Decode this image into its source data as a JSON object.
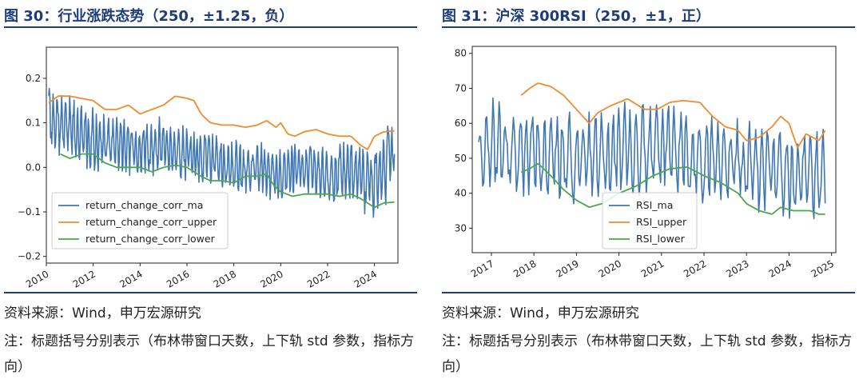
{
  "chart_data": [
    {
      "type": "line",
      "title": "图 30：行业涨跌态势（250，±1.25，负）",
      "xlabel": "",
      "ylabel": "",
      "x_ticks": [
        "2010",
        "2012",
        "2014",
        "2016",
        "2018",
        "2020",
        "2022",
        "2024"
      ],
      "x_range": [
        2010.0,
        2025.0
      ],
      "ylim": [
        -0.215,
        0.27
      ],
      "y_ticks": [
        0.2,
        0.1,
        0.0,
        -0.1,
        -0.2
      ],
      "y_tick_labels": [
        "0.2",
        "0.1",
        "0.0",
        "−0.1",
        "−0.2"
      ],
      "legend_position": "lower-left",
      "series": [
        {
          "name": "return_change_corr_ma",
          "color": "#3f77b4",
          "kind": "oscillating",
          "x_start": 2010.1,
          "x_end": 2024.85,
          "points": 560,
          "seed": 7,
          "base": [
            [
              2010.1,
              0.1
            ],
            [
              2011,
              0.09
            ],
            [
              2012,
              0.06
            ],
            [
              2013,
              0.05
            ],
            [
              2014,
              0.04
            ],
            [
              2015,
              0.05
            ],
            [
              2016,
              0.03
            ],
            [
              2017,
              0.02
            ],
            [
              2018,
              0.0
            ],
            [
              2019,
              0.0
            ],
            [
              2020,
              -0.02
            ],
            [
              2021,
              0.0
            ],
            [
              2022,
              -0.02
            ],
            [
              2023,
              -0.01
            ],
            [
              2024,
              -0.03
            ],
            [
              2024.85,
              0.05
            ]
          ],
          "amp": [
            [
              2010.1,
              0.08
            ],
            [
              2012,
              0.07
            ],
            [
              2016,
              0.06
            ],
            [
              2019,
              0.06
            ],
            [
              2022,
              0.06
            ],
            [
              2024.85,
              0.1
            ]
          ]
        },
        {
          "name": "return_change_corr_upper",
          "color": "#f08c2e",
          "kind": "smooth",
          "points": [
            [
              2010.1,
              0.145
            ],
            [
              2010.5,
              0.16
            ],
            [
              2011,
              0.16
            ],
            [
              2011.5,
              0.155
            ],
            [
              2012,
              0.15
            ],
            [
              2012.5,
              0.13
            ],
            [
              2013,
              0.13
            ],
            [
              2013.5,
              0.14
            ],
            [
              2014,
              0.12
            ],
            [
              2014.5,
              0.13
            ],
            [
              2015,
              0.14
            ],
            [
              2015.5,
              0.16
            ],
            [
              2016,
              0.155
            ],
            [
              2016.3,
              0.15
            ],
            [
              2016.6,
              0.12
            ],
            [
              2017,
              0.1
            ],
            [
              2017.5,
              0.095
            ],
            [
              2018,
              0.095
            ],
            [
              2018.5,
              0.09
            ],
            [
              2019,
              0.095
            ],
            [
              2019.4,
              0.105
            ],
            [
              2019.8,
              0.09
            ],
            [
              2020,
              0.1
            ],
            [
              2020.3,
              0.075
            ],
            [
              2020.6,
              0.07
            ],
            [
              2021,
              0.08
            ],
            [
              2021.5,
              0.085
            ],
            [
              2022,
              0.075
            ],
            [
              2022.5,
              0.07
            ],
            [
              2023,
              0.07
            ],
            [
              2023.4,
              0.05
            ],
            [
              2023.7,
              0.04
            ],
            [
              2024,
              0.07
            ],
            [
              2024.4,
              0.08
            ],
            [
              2024.85,
              0.082
            ]
          ]
        },
        {
          "name": "return_change_corr_lower",
          "color": "#4ca64c",
          "kind": "smooth",
          "points": [
            [
              2010.6,
              0.03
            ],
            [
              2011,
              0.02
            ],
            [
              2011.5,
              0.03
            ],
            [
              2012,
              0.03
            ],
            [
              2012.5,
              0.01
            ],
            [
              2013,
              0.0
            ],
            [
              2013.5,
              0.0
            ],
            [
              2014,
              0.0
            ],
            [
              2014.5,
              -0.01
            ],
            [
              2015,
              0.0
            ],
            [
              2015.5,
              0.005
            ],
            [
              2016,
              0.0
            ],
            [
              2016.3,
              -0.01
            ],
            [
              2016.6,
              -0.02
            ],
            [
              2017,
              -0.03
            ],
            [
              2017.5,
              -0.03
            ],
            [
              2018,
              -0.035
            ],
            [
              2018.5,
              -0.02
            ],
            [
              2019,
              -0.02
            ],
            [
              2019.4,
              -0.015
            ],
            [
              2019.7,
              -0.04
            ],
            [
              2020,
              -0.055
            ],
            [
              2020.5,
              -0.065
            ],
            [
              2021,
              -0.06
            ],
            [
              2021.5,
              -0.06
            ],
            [
              2022,
              -0.06
            ],
            [
              2022.5,
              -0.065
            ],
            [
              2023,
              -0.06
            ],
            [
              2023.4,
              -0.07
            ],
            [
              2023.7,
              -0.08
            ],
            [
              2024,
              -0.09
            ],
            [
              2024.4,
              -0.08
            ],
            [
              2024.85,
              -0.078
            ]
          ]
        }
      ]
    },
    {
      "type": "line",
      "title": "图 31：沪深 300RSI（250，±1，正）",
      "xlabel": "",
      "ylabel": "",
      "x_ticks": [
        "2017",
        "2018",
        "2019",
        "2020",
        "2021",
        "2022",
        "2023",
        "2024",
        "2025"
      ],
      "x_range": [
        2016.55,
        2025.1
      ],
      "ylim": [
        23.0,
        82.0
      ],
      "y_ticks": [
        80,
        70,
        60,
        50,
        40,
        30
      ],
      "y_tick_labels": [
        "80",
        "70",
        "60",
        "50",
        "40",
        "30"
      ],
      "legend_position": "lower-center",
      "series": [
        {
          "name": "RSI_ma",
          "color": "#3f77b4",
          "kind": "oscillating",
          "x_start": 2016.7,
          "x_end": 2024.85,
          "points": 340,
          "seed": 11,
          "base": [
            [
              2016.7,
              50
            ],
            [
              2017,
              55
            ],
            [
              2017.5,
              52
            ],
            [
              2018,
              52
            ],
            [
              2019,
              50
            ],
            [
              2020,
              52
            ],
            [
              2021,
              54
            ],
            [
              2022,
              50
            ],
            [
              2023,
              48
            ],
            [
              2024,
              45
            ],
            [
              2024.85,
              47
            ]
          ],
          "amp": [
            [
              2016.7,
              12
            ],
            [
              2018,
              14
            ],
            [
              2020,
              14
            ],
            [
              2022,
              13
            ],
            [
              2024,
              13
            ],
            [
              2024.85,
              14
            ]
          ]
        },
        {
          "name": "RSI_upper",
          "color": "#f08c2e",
          "kind": "smooth",
          "points": [
            [
              2017.7,
              68
            ],
            [
              2017.9,
              70
            ],
            [
              2018.1,
              71.5
            ],
            [
              2018.4,
              70.5
            ],
            [
              2018.7,
              68
            ],
            [
              2019,
              64
            ],
            [
              2019.3,
              60
            ],
            [
              2019.5,
              63
            ],
            [
              2019.8,
              65
            ],
            [
              2020.2,
              67
            ],
            [
              2020.6,
              64
            ],
            [
              2020.9,
              64
            ],
            [
              2021.2,
              66
            ],
            [
              2021.5,
              66.5
            ],
            [
              2021.9,
              66
            ],
            [
              2022.2,
              62
            ],
            [
              2022.5,
              59
            ],
            [
              2022.8,
              58
            ],
            [
              2023,
              55
            ],
            [
              2023.3,
              56
            ],
            [
              2023.6,
              59
            ],
            [
              2023.8,
              62
            ],
            [
              2024,
              60
            ],
            [
              2024.2,
              53
            ],
            [
              2024.4,
              57
            ],
            [
              2024.7,
              55
            ],
            [
              2024.85,
              58
            ]
          ]
        },
        {
          "name": "RSI_lower",
          "color": "#4ca64c",
          "kind": "smooth",
          "points": [
            [
              2017.7,
              46
            ],
            [
              2017.9,
              47
            ],
            [
              2018.1,
              48.5
            ],
            [
              2018.4,
              45
            ],
            [
              2018.7,
              41
            ],
            [
              2019,
              38
            ],
            [
              2019.3,
              36
            ],
            [
              2019.6,
              37
            ],
            [
              2020,
              40
            ],
            [
              2020.4,
              42
            ],
            [
              2020.8,
              45
            ],
            [
              2021.2,
              47
            ],
            [
              2021.6,
              47.5
            ],
            [
              2022,
              45
            ],
            [
              2022.4,
              43
            ],
            [
              2022.8,
              40
            ],
            [
              2023,
              37
            ],
            [
              2023.3,
              35
            ],
            [
              2023.6,
              34
            ],
            [
              2023.8,
              36
            ],
            [
              2024.1,
              35
            ],
            [
              2024.5,
              35
            ],
            [
              2024.7,
              34
            ],
            [
              2024.85,
              34
            ]
          ]
        }
      ]
    }
  ],
  "left": {
    "title": "图 30：行业涨跌态势（250，±1.25，负）",
    "source": "资料来源：Wind，申万宏源研究",
    "note": "注：标题括号分别表示（布林带窗口天数，上下轨 std 参数，指标方向）"
  },
  "right": {
    "title": "图 31：沪深 300RSI（250，±1，正）",
    "source": "资料来源：Wind，申万宏源研究",
    "note": "注：标题括号分别表示（布林带窗口天数，上下轨 std 参数，指标方向）"
  },
  "colors": {
    "accent": "#1f3c7a",
    "series_blue": "#3f77b4",
    "series_orange": "#f08c2e",
    "series_green": "#4ca64c"
  }
}
